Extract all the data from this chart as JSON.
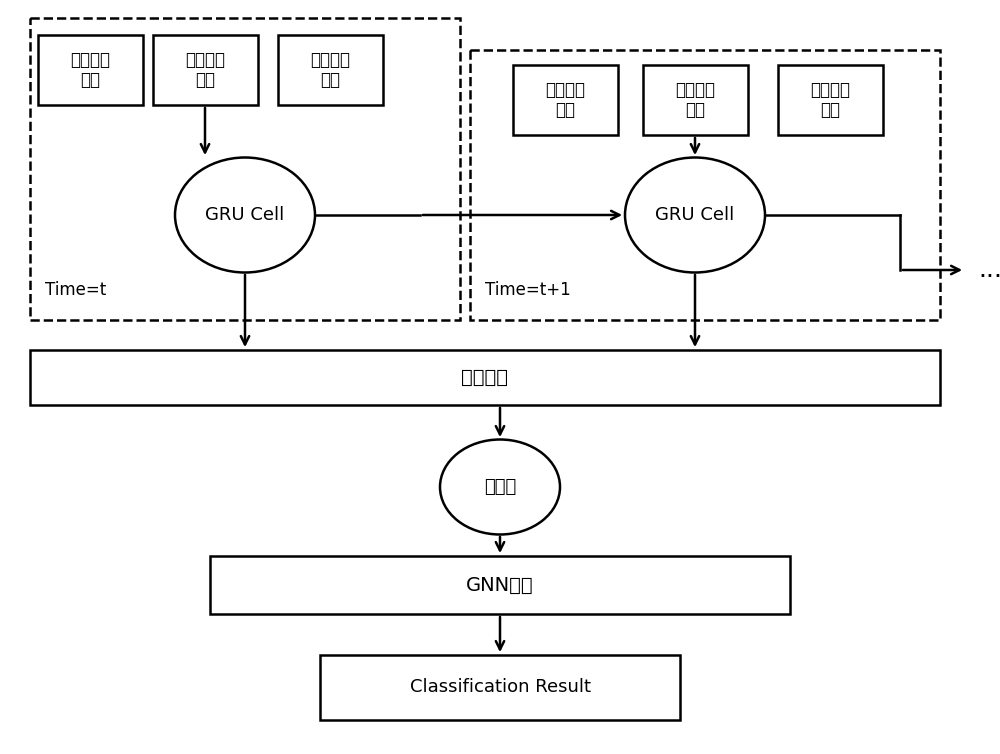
{
  "figsize": [
    10.0,
    7.54
  ],
  "dpi": 100,
  "bg_color": "#ffffff",
  "box1_labels": [
    "枚举类型\n字段",
    "数值类型\n字段",
    "时间类型\n字段"
  ],
  "box2_labels": [
    "枚举类型\n字段",
    "数值类型\n字段",
    "时间类型\n字段"
  ],
  "gru1_label": "GRU Cell",
  "gru2_label": "GRU Cell",
  "time1_label": "Time=t",
  "time2_label": "Time=t+1",
  "bottom_box1_label": "图构建层",
  "ellipse_label": "图数据",
  "bottom_box2_label": "GNN模型",
  "result_box_label": "Classification Result",
  "dots_label": "...",
  "lc": "#000000",
  "lw": 1.8,
  "alw": 1.8
}
